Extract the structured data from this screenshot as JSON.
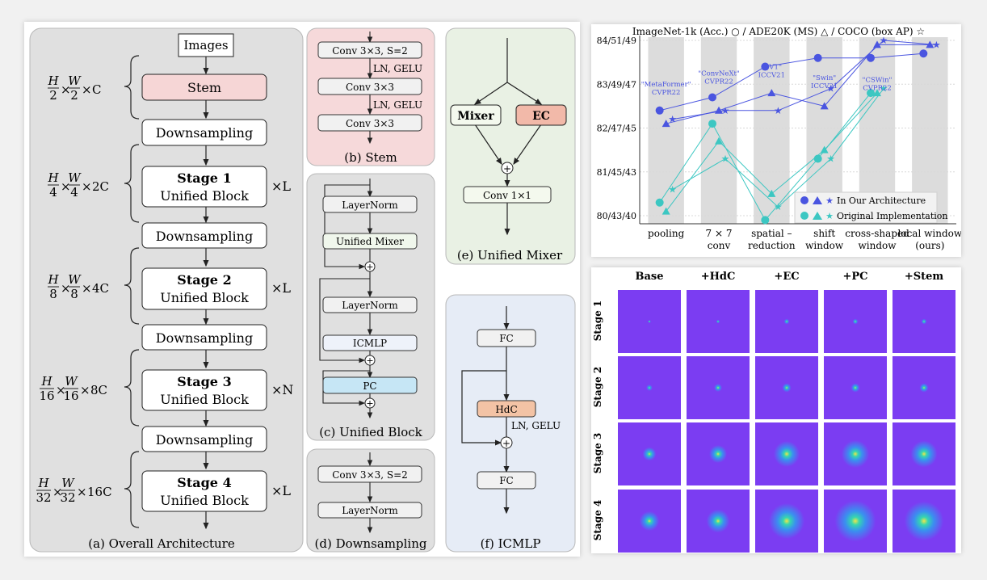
{
  "overall": {
    "images": "Images",
    "stem": "Stem",
    "downsampling": "Downsampling",
    "stage_word": "Stage",
    "unified_block": "Unified Block",
    "stages": [
      {
        "num": "1",
        "mult": "×L",
        "frac": "4",
        "ch": "2C"
      },
      {
        "num": "2",
        "mult": "×L",
        "frac": "8",
        "ch": "4C"
      },
      {
        "num": "3",
        "mult": "×N",
        "frac": "16",
        "ch": "8C"
      },
      {
        "num": "4",
        "mult": "×L",
        "frac": "32",
        "ch": "16C"
      }
    ],
    "stem_dim": {
      "frac": "2",
      "ch": "C"
    },
    "H": "H",
    "W": "W",
    "times": "×",
    "caption": "(a) Overall Architecture"
  },
  "stem_panel": {
    "conv_s2": "Conv 3×3,  S=2",
    "ln_gelu": "LN, GELU",
    "conv": "Conv 3×3",
    "caption": "(b) Stem"
  },
  "block_panel": {
    "layernorm": "LayerNorm",
    "mixer": "Unified Mixer",
    "icmlp": "ICMLP",
    "pc": "PC",
    "plus": "+",
    "caption": "(c) Unified Block"
  },
  "down_panel": {
    "conv_s2": "Conv 3×3,  S=2",
    "layernorm": "LayerNorm",
    "caption": "(d) Downsampling"
  },
  "mixer_panel": {
    "mixer": "Mixer",
    "ec": "EC",
    "conv": "Conv 1×1",
    "caption": "(e) Unified Mixer"
  },
  "icmlp_panel": {
    "fc": "FC",
    "hdc": "HdC",
    "ln_gelu": "LN, GELU",
    "caption": "(f) ICMLP"
  },
  "chart_data": {
    "type": "line",
    "title": "ImageNet-1k (Acc.) ○ / ADE20K (MS) △ / COCO (box AP) ☆",
    "categories": [
      [
        "pooling"
      ],
      [
        "7 × 7",
        "conv"
      ],
      [
        "spatial –",
        "reduction"
      ],
      [
        "shift",
        "window"
      ],
      [
        "cross-shaped",
        "window"
      ],
      [
        "local window",
        "(ours)"
      ]
    ],
    "yticks": [
      "80/43/40",
      "81/45/43",
      "82/47/45",
      "83/49/47",
      "84/51/49"
    ],
    "ylim": [
      80,
      84
    ],
    "series": [
      {
        "name": "In Our Architecture · ImageNet-1k",
        "marker": "circle",
        "color": "#4a55e0",
        "values": [
          82.4,
          82.7,
          83.4,
          83.6,
          83.6,
          83.7
        ]
      },
      {
        "name": "In Our Architecture · ADE20K",
        "marker": "triangle",
        "color": "#4a55e0",
        "values": [
          82.1,
          82.4,
          82.8,
          82.5,
          83.9,
          83.9
        ]
      },
      {
        "name": "In Our Architecture · COCO",
        "marker": "star",
        "color": "#4a55e0",
        "values": [
          82.2,
          82.4,
          82.4,
          82.9,
          84.0,
          83.9
        ]
      },
      {
        "name": "Original Implementation · ImageNet-1k",
        "marker": "circle",
        "color": "#3cc7c2",
        "values": [
          80.3,
          82.1,
          79.9,
          81.3,
          82.8,
          null
        ]
      },
      {
        "name": "Original Implementation · ADE20K",
        "marker": "triangle",
        "color": "#3cc7c2",
        "values": [
          80.1,
          81.7,
          80.5,
          81.5,
          82.8,
          null
        ]
      },
      {
        "name": "Original Implementation · COCO",
        "marker": "star",
        "color": "#3cc7c2",
        "values": [
          80.6,
          81.3,
          80.2,
          81.3,
          82.9,
          null
        ]
      }
    ],
    "annotations": [
      {
        "text": [
          "\"MetaFormer\"",
          "CVPR22"
        ],
        "x": 0,
        "y": 82.95
      },
      {
        "text": [
          "\"ConvNeXt\"",
          "CVPR22"
        ],
        "x": 1,
        "y": 83.2
      },
      {
        "text": [
          "\"PVT\"",
          "ICCV21"
        ],
        "x": 2,
        "y": 83.35
      },
      {
        "text": [
          "\"Swin\"",
          "ICCV21"
        ],
        "x": 3,
        "y": 83.1
      },
      {
        "text": [
          "\"CSWin\"",
          "CVPR22"
        ],
        "x": 4,
        "y": 83.05
      }
    ],
    "legend": {
      "position": "bottom-right",
      "entries": [
        "In Our Architecture",
        "Original Implementation"
      ]
    },
    "shaded_columns": true
  },
  "heatmaps": {
    "columns": [
      "Base",
      "+HdC",
      "+EC",
      "+PC",
      "+Stem"
    ],
    "rows": [
      "Stage 1",
      "Stage 2",
      "Stage 3",
      "Stage 4"
    ],
    "spread": [
      [
        0.03,
        0.04,
        0.05,
        0.05,
        0.05
      ],
      [
        0.06,
        0.08,
        0.09,
        0.09,
        0.09
      ],
      [
        0.14,
        0.18,
        0.26,
        0.28,
        0.27
      ],
      [
        0.2,
        0.24,
        0.36,
        0.42,
        0.4
      ]
    ],
    "colors": {
      "background": "#7b3df2",
      "low": "#3a8ff0",
      "mid": "#35d6b0",
      "high": "#f0e44a"
    }
  }
}
